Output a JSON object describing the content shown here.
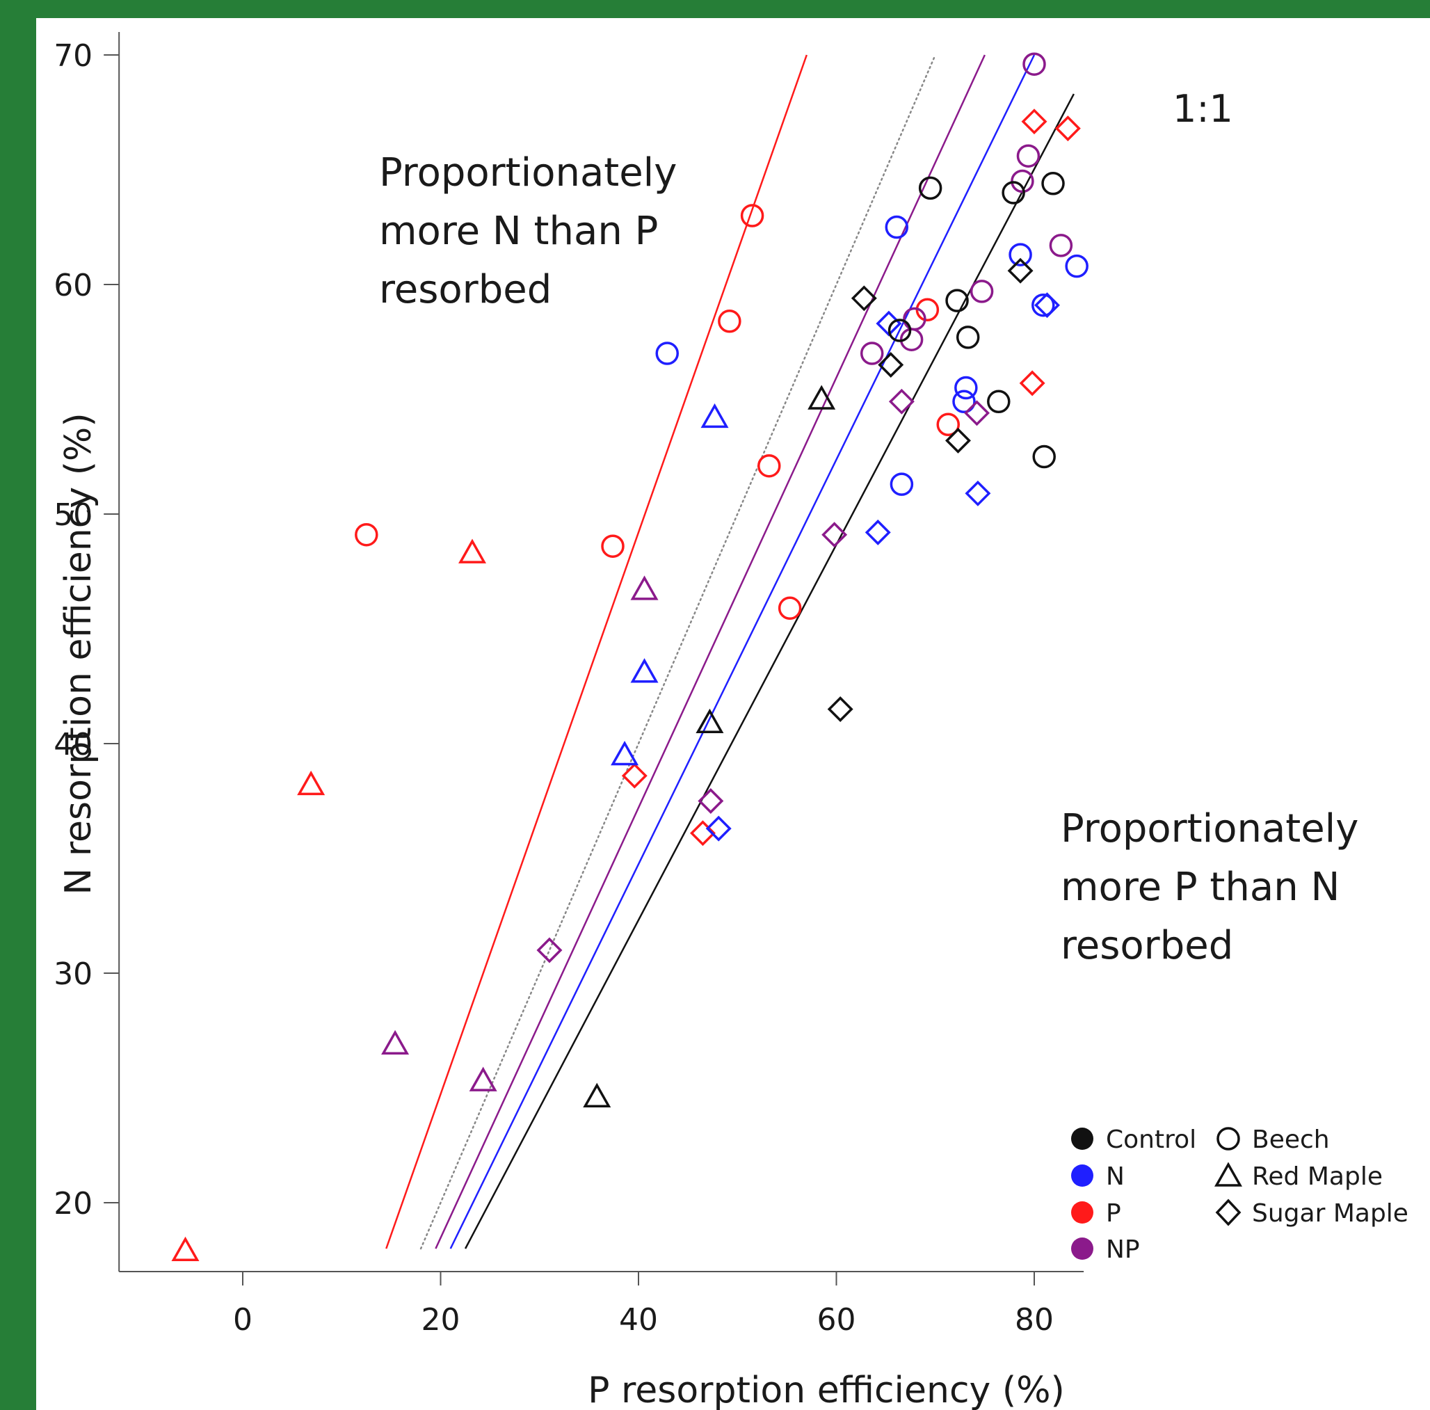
{
  "chart_data": {
    "type": "scatter",
    "xlabel": "P resorption efficiency (%)",
    "ylabel": "N resorption efficiency (%)",
    "xlim": [
      -12.5,
      85
    ],
    "ylim": [
      17,
      71
    ],
    "xticks": [
      0,
      20,
      40,
      60,
      80
    ],
    "yticks": [
      20,
      30,
      40,
      50,
      60,
      70
    ],
    "xtick_labels": [
      "0",
      "20",
      "40",
      "60",
      "80"
    ],
    "ytick_labels": [
      "20",
      "30",
      "40",
      "50",
      "60",
      "70"
    ],
    "grid": false,
    "annotations": {
      "upper_left": [
        "Proportionately",
        "more N than P",
        "resorbed"
      ],
      "lower_right": [
        "Proportionately",
        "more P than N",
        "resorbed"
      ],
      "ratio_line": "1:1"
    },
    "treatment_colors": {
      "Control": "#111111",
      "N": "#1f1fff",
      "P": "#ff1a1a",
      "NP": "#8b1a8b"
    },
    "reference_line": {
      "name": "1:1",
      "from": [
        18,
        18
      ],
      "to": [
        70,
        70
      ],
      "color": "#888888",
      "style": "dotted"
    },
    "fit_lines": [
      {
        "treatment": "P",
        "from": [
          14.5,
          18
        ],
        "to": [
          57,
          70
        ]
      },
      {
        "treatment": "NP",
        "from": [
          19.5,
          18
        ],
        "to": [
          75,
          70
        ]
      },
      {
        "treatment": "N",
        "from": [
          21,
          18
        ],
        "to": [
          80,
          70
        ]
      },
      {
        "treatment": "Control",
        "from": [
          22.5,
          18
        ],
        "to": [
          84,
          68.3
        ]
      }
    ],
    "legend": {
      "placement": "bottom-right",
      "treatments": [
        "Control",
        "N",
        "P",
        "NP"
      ],
      "species": [
        {
          "label": "Beech",
          "marker": "circle"
        },
        {
          "label": "Red Maple",
          "marker": "triangle"
        },
        {
          "label": "Sugar Maple",
          "marker": "diamond"
        }
      ]
    },
    "points": [
      {
        "treatment": "P",
        "species": "Beech",
        "x": 51.5,
        "y": 63
      },
      {
        "treatment": "P",
        "species": "Beech",
        "x": 49.2,
        "y": 58.4
      },
      {
        "treatment": "P",
        "species": "Beech",
        "x": 53.2,
        "y": 52.1
      },
      {
        "treatment": "P",
        "species": "Beech",
        "x": 37.4,
        "y": 48.6
      },
      {
        "treatment": "P",
        "species": "Beech",
        "x": 12.5,
        "y": 49.1
      },
      {
        "treatment": "P",
        "species": "Beech",
        "x": 55.3,
        "y": 45.9
      },
      {
        "treatment": "P",
        "species": "Beech",
        "x": 69.2,
        "y": 58.9
      },
      {
        "treatment": "P",
        "species": "Beech",
        "x": 71.3,
        "y": 53.9
      },
      {
        "treatment": "P",
        "species": "Red Maple",
        "x": 23.2,
        "y": 48.3
      },
      {
        "treatment": "P",
        "species": "Red Maple",
        "x": 6.9,
        "y": 38.2
      },
      {
        "treatment": "P",
        "species": "Red Maple",
        "x": -5.8,
        "y": 17.9
      },
      {
        "treatment": "P",
        "species": "Sugar Maple",
        "x": 39.6,
        "y": 38.6
      },
      {
        "treatment": "P",
        "species": "Sugar Maple",
        "x": 46.5,
        "y": 36.1
      },
      {
        "treatment": "P",
        "species": "Sugar Maple",
        "x": 80,
        "y": 67.1
      },
      {
        "treatment": "P",
        "species": "Sugar Maple",
        "x": 83.4,
        "y": 66.8
      },
      {
        "treatment": "P",
        "species": "Sugar Maple",
        "x": 79.8,
        "y": 55.7
      },
      {
        "treatment": "N",
        "species": "Beech",
        "x": 42.9,
        "y": 57
      },
      {
        "treatment": "N",
        "species": "Beech",
        "x": 66.1,
        "y": 62.5
      },
      {
        "treatment": "N",
        "species": "Beech",
        "x": 66.6,
        "y": 51.3
      },
      {
        "treatment": "N",
        "species": "Beech",
        "x": 73.1,
        "y": 55.5
      },
      {
        "treatment": "N",
        "species": "Beech",
        "x": 72.9,
        "y": 54.9
      },
      {
        "treatment": "N",
        "species": "Beech",
        "x": 78.6,
        "y": 61.3
      },
      {
        "treatment": "N",
        "species": "Beech",
        "x": 80.9,
        "y": 59.1
      },
      {
        "treatment": "N",
        "species": "Beech",
        "x": 84.3,
        "y": 60.8
      },
      {
        "treatment": "N",
        "species": "Red Maple",
        "x": 47.7,
        "y": 54.2
      },
      {
        "treatment": "N",
        "species": "Red Maple",
        "x": 40.6,
        "y": 43.1
      },
      {
        "treatment": "N",
        "species": "Red Maple",
        "x": 38.6,
        "y": 39.5
      },
      {
        "treatment": "N",
        "species": "Sugar Maple",
        "x": 65.3,
        "y": 58.3
      },
      {
        "treatment": "N",
        "species": "Sugar Maple",
        "x": 64.2,
        "y": 49.2
      },
      {
        "treatment": "N",
        "species": "Sugar Maple",
        "x": 74.3,
        "y": 50.9
      },
      {
        "treatment": "N",
        "species": "Sugar Maple",
        "x": 81.3,
        "y": 59.1
      },
      {
        "treatment": "N",
        "species": "Sugar Maple",
        "x": 48.1,
        "y": 36.3
      },
      {
        "treatment": "NP",
        "species": "Beech",
        "x": 80,
        "y": 69.6
      },
      {
        "treatment": "NP",
        "species": "Beech",
        "x": 79.4,
        "y": 65.6
      },
      {
        "treatment": "NP",
        "species": "Beech",
        "x": 78.8,
        "y": 64.5
      },
      {
        "treatment": "NP",
        "species": "Beech",
        "x": 82.7,
        "y": 61.7
      },
      {
        "treatment": "NP",
        "species": "Beech",
        "x": 74.7,
        "y": 59.7
      },
      {
        "treatment": "NP",
        "species": "Beech",
        "x": 63.6,
        "y": 57
      },
      {
        "treatment": "NP",
        "species": "Beech",
        "x": 67.6,
        "y": 57.6
      },
      {
        "treatment": "NP",
        "species": "Beech",
        "x": 67.9,
        "y": 58.5
      },
      {
        "treatment": "NP",
        "species": "Red Maple",
        "x": 40.6,
        "y": 46.7
      },
      {
        "treatment": "NP",
        "species": "Red Maple",
        "x": 15.4,
        "y": 26.9
      },
      {
        "treatment": "NP",
        "species": "Red Maple",
        "x": 24.3,
        "y": 25.3
      },
      {
        "treatment": "NP",
        "species": "Sugar Maple",
        "x": 66.6,
        "y": 54.9
      },
      {
        "treatment": "NP",
        "species": "Sugar Maple",
        "x": 74.2,
        "y": 54.4
      },
      {
        "treatment": "NP",
        "species": "Sugar Maple",
        "x": 59.8,
        "y": 49.1
      },
      {
        "treatment": "NP",
        "species": "Sugar Maple",
        "x": 47.3,
        "y": 37.5
      },
      {
        "treatment": "NP",
        "species": "Sugar Maple",
        "x": 31,
        "y": 31
      },
      {
        "treatment": "Control",
        "species": "Beech",
        "x": 69.5,
        "y": 64.2
      },
      {
        "treatment": "Control",
        "species": "Beech",
        "x": 77.9,
        "y": 64
      },
      {
        "treatment": "Control",
        "species": "Beech",
        "x": 81.9,
        "y": 64.4
      },
      {
        "treatment": "Control",
        "species": "Beech",
        "x": 72.2,
        "y": 59.3
      },
      {
        "treatment": "Control",
        "species": "Beech",
        "x": 73.3,
        "y": 57.7
      },
      {
        "treatment": "Control",
        "species": "Beech",
        "x": 66.4,
        "y": 58
      },
      {
        "treatment": "Control",
        "species": "Beech",
        "x": 76.4,
        "y": 54.9
      },
      {
        "treatment": "Control",
        "species": "Beech",
        "x": 81,
        "y": 52.5
      },
      {
        "treatment": "Control",
        "species": "Red Maple",
        "x": 58.5,
        "y": 55
      },
      {
        "treatment": "Control",
        "species": "Red Maple",
        "x": 47.2,
        "y": 40.9
      },
      {
        "treatment": "Control",
        "species": "Red Maple",
        "x": 35.8,
        "y": 24.6
      },
      {
        "treatment": "Control",
        "species": "Sugar Maple",
        "x": 62.8,
        "y": 59.4
      },
      {
        "treatment": "Control",
        "species": "Sugar Maple",
        "x": 65.5,
        "y": 56.5
      },
      {
        "treatment": "Control",
        "species": "Sugar Maple",
        "x": 72.3,
        "y": 53.2
      },
      {
        "treatment": "Control",
        "species": "Sugar Maple",
        "x": 78.6,
        "y": 60.6
      },
      {
        "treatment": "Control",
        "species": "Sugar Maple",
        "x": 60.4,
        "y": 41.5
      }
    ]
  }
}
